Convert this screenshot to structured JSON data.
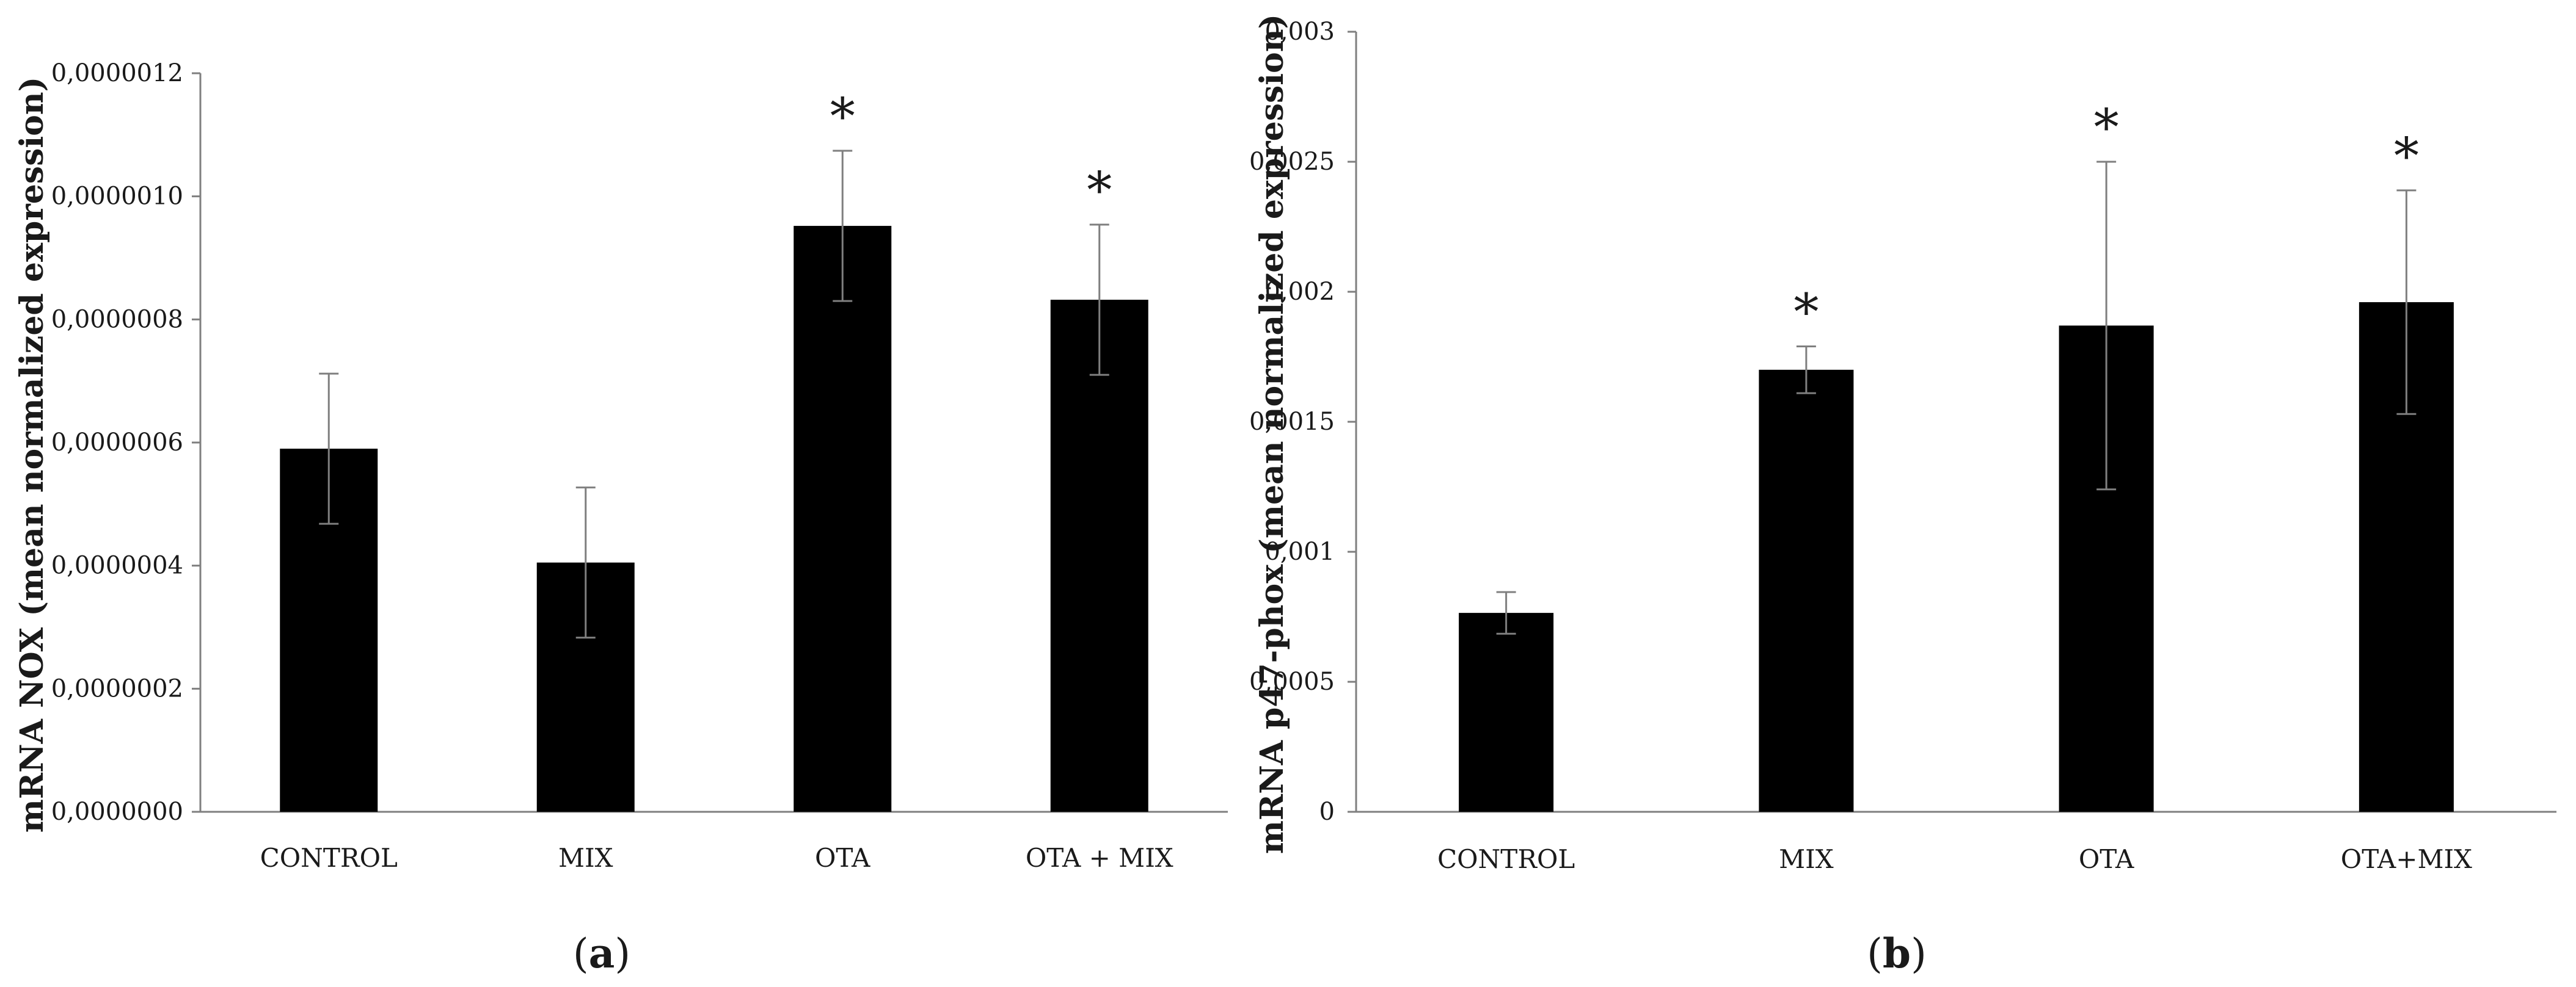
{
  "figure": {
    "panels": [
      {
        "label_open": "(",
        "letter": "a",
        "label_close": ")"
      },
      {
        "label_open": "(",
        "letter": "b",
        "label_close": ")"
      }
    ]
  },
  "chart_data": [
    {
      "type": "bar",
      "ylabel": "mRNA NOX (mean normalized expression)",
      "xlabel": "",
      "ylim": [
        0,
        1.2e-06
      ],
      "yticks": [
        0,
        2e-07,
        4e-07,
        6e-07,
        8e-07,
        1e-06,
        1.2e-06
      ],
      "ytick_labels": [
        "0,0000000",
        "0,0000002",
        "0,0000004",
        "0,0000006",
        "0,0000008",
        "0,0000010",
        "0,0000012"
      ],
      "categories": [
        "CONTROL",
        "MIX",
        "OTA",
        "OTA + MIX"
      ],
      "values": [
        5.9e-07,
        4.05e-07,
        9.52e-07,
        8.32e-07
      ],
      "errors": [
        1.22e-07,
        1.22e-07,
        1.22e-07,
        1.22e-07
      ],
      "significance": [
        "",
        "",
        "*",
        "*"
      ],
      "bar_color": "#000000",
      "grid": false
    },
    {
      "type": "bar",
      "ylabel": "mRNA p47-phox (mean normalized expression)",
      "xlabel": "",
      "ylim": [
        0,
        0.003
      ],
      "yticks": [
        0,
        0.0005,
        0.001,
        0.0015,
        0.002,
        0.0025,
        0.003
      ],
      "ytick_labels": [
        "0",
        "0,0005",
        "0,001",
        "0,0015",
        "0,002",
        "0,0025",
        "0,003"
      ],
      "categories": [
        "CONTROL",
        "MIX",
        "OTA",
        "OTA+MIX"
      ],
      "values": [
        0.000765,
        0.0017,
        0.00187,
        0.00196
      ],
      "errors": [
        8e-05,
        9e-05,
        0.00063,
        0.00043
      ],
      "significance": [
        "",
        "*",
        "*",
        "*"
      ],
      "bar_color": "#000000",
      "grid": false
    }
  ]
}
